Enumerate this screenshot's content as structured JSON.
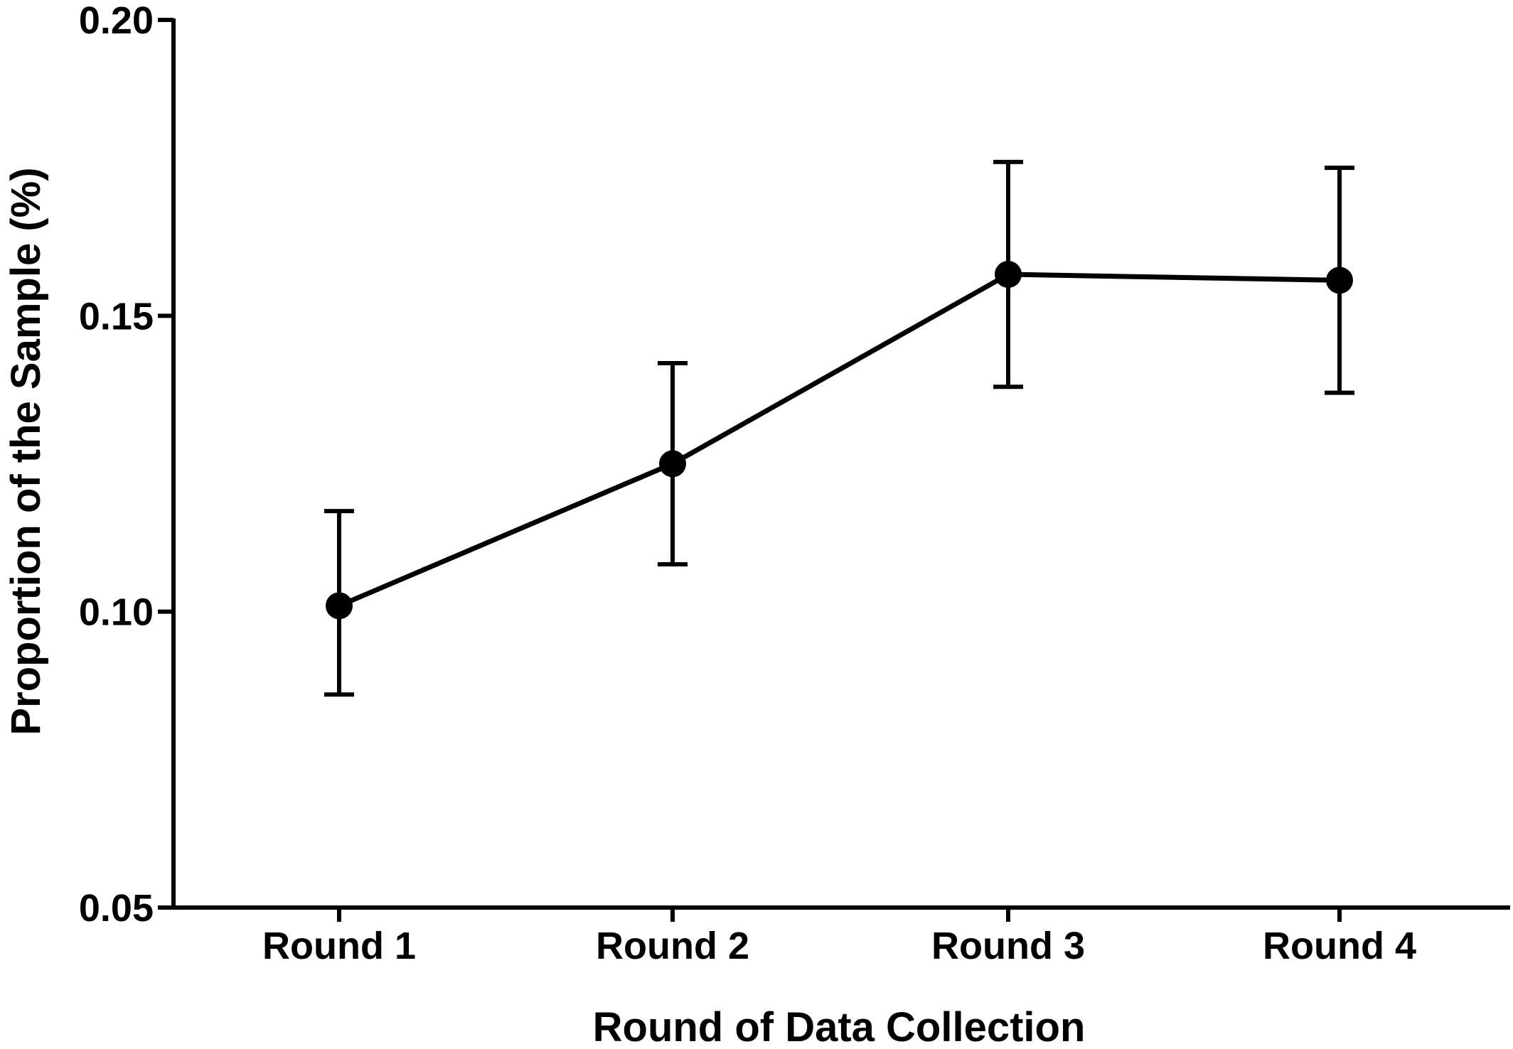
{
  "chart_data": {
    "type": "line",
    "title": "",
    "xlabel": "Round of Data Collection",
    "ylabel": "Proportion of the Sample (%)",
    "categories": [
      "Round 1",
      "Round 2",
      "Round 3",
      "Round 4"
    ],
    "series": [
      {
        "values": [
          0.101,
          0.125,
          0.157,
          0.156
        ],
        "error_low": [
          0.086,
          0.108,
          0.138,
          0.137
        ],
        "error_high": [
          0.117,
          0.142,
          0.176,
          0.175
        ]
      }
    ],
    "ylim": [
      0.05,
      0.2
    ],
    "yticks": [
      "0.05",
      "0.10",
      "0.15",
      "0.20"
    ],
    "grid": false,
    "legend": "none",
    "colors": {
      "line": "#000000",
      "marker": "#000000",
      "axis": "#000000"
    }
  }
}
